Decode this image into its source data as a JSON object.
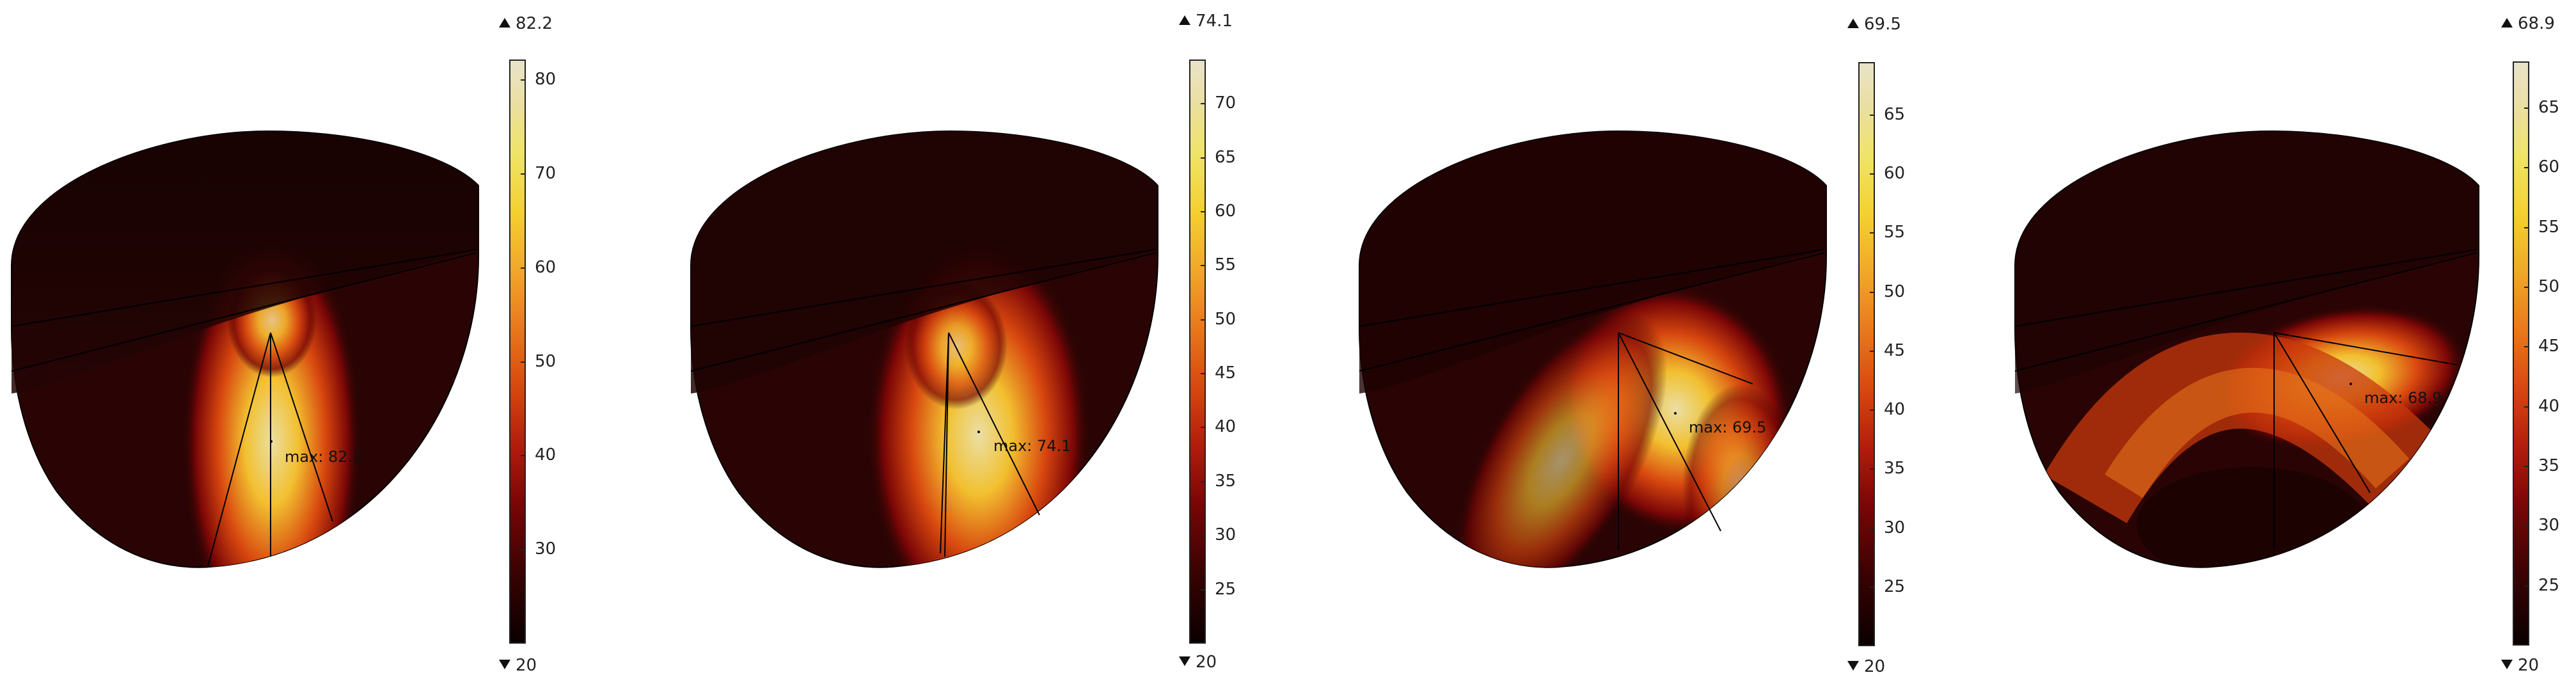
{
  "panels": [
    {
      "name": "panel-1",
      "max_label": "max: 82.2",
      "colorbar": {
        "max": "82.2",
        "min": "20",
        "range": [
          20,
          82.2
        ],
        "ticks": [
          "30",
          "40",
          "50",
          "60",
          "70",
          "80"
        ]
      },
      "hotspot_shape": "narrow-vertical"
    },
    {
      "name": "panel-2",
      "max_label": "max: 74.1",
      "colorbar": {
        "max": "74.1",
        "min": "20",
        "range": [
          20,
          74.1
        ],
        "ticks": [
          "25",
          "30",
          "35",
          "40",
          "45",
          "50",
          "55",
          "60",
          "65",
          "70"
        ]
      },
      "hotspot_shape": "wider-vertical"
    },
    {
      "name": "panel-3",
      "max_label": "max: 69.5",
      "colorbar": {
        "max": "69.5",
        "min": "20",
        "range": [
          20,
          69.5
        ],
        "ticks": [
          "25",
          "30",
          "35",
          "40",
          "45",
          "50",
          "55",
          "60",
          "65"
        ]
      },
      "hotspot_shape": "v-spread"
    },
    {
      "name": "panel-4",
      "max_label": "max: 68.9",
      "colorbar": {
        "max": "68.9",
        "min": "20",
        "range": [
          20,
          68.9
        ],
        "ticks": [
          "25",
          "30",
          "35",
          "40",
          "45",
          "50",
          "55",
          "60",
          "65"
        ]
      },
      "hotspot_shape": "arch"
    }
  ],
  "colors": {
    "background": "#ffffff",
    "body_dark": "#2a0404",
    "top_surface": "#1e0303",
    "hot": "#eadfa4",
    "edge": "#000000"
  }
}
